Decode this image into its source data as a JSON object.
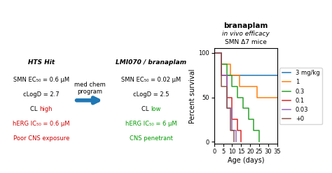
{
  "chart_data": {
    "type": "step",
    "title": "branaplam",
    "subtitle": [
      "in vivo efficacy",
      "SMN Δ7 mice"
    ],
    "x_label": "Age (days)",
    "y_label": "Percent survival",
    "series": [
      {
        "name": "3 mg/kg",
        "x": [
          0,
          4,
          4,
          35
        ],
        "values": [
          100,
          100,
          75,
          75
        ]
      },
      {
        "name": "1",
        "x": [
          0,
          4,
          4,
          9,
          9,
          14,
          14,
          24,
          24,
          35
        ],
        "values": [
          100,
          100,
          87.5,
          87.5,
          75,
          75,
          62.5,
          62.5,
          50,
          50
        ]
      },
      {
        "name": "0.3",
        "x": [
          0,
          4,
          4,
          7,
          7,
          10,
          10,
          13,
          13,
          16,
          16,
          19,
          19,
          22,
          22,
          25,
          25
        ],
        "values": [
          100,
          100,
          87.5,
          87.5,
          75,
          75,
          62.5,
          62.5,
          50,
          50,
          37.5,
          37.5,
          25,
          25,
          12.5,
          12.5,
          0
        ]
      },
      {
        "name": "0.1",
        "x": [
          0,
          4,
          4,
          7,
          7,
          10,
          10,
          13,
          13,
          15,
          15
        ],
        "values": [
          100,
          100,
          75,
          75,
          50,
          50,
          25,
          25,
          12.5,
          12.5,
          0
        ]
      },
      {
        "name": "0.03",
        "x": [
          0,
          4,
          4,
          7,
          7,
          10,
          10,
          12,
          12
        ],
        "values": [
          100,
          100,
          75,
          75,
          37.5,
          37.5,
          12.5,
          12.5,
          0
        ]
      },
      {
        "name": "+0",
        "x": [
          0,
          4,
          4,
          7,
          7,
          9,
          9,
          11,
          11
        ],
        "values": [
          100,
          100,
          62.5,
          62.5,
          37.5,
          37.5,
          12.5,
          12.5,
          0
        ]
      }
    ],
    "xlim": [
      0,
      35
    ],
    "ylim": [
      -2,
      105
    ],
    "xticks": [
      0,
      5,
      10,
      15,
      20,
      25,
      30,
      35
    ],
    "yticks": [
      0,
      50,
      100
    ],
    "legend": "right",
    "annotations": [
      {
        "kind": "panel",
        "title": "HTS Hit",
        "lines": [
          [
            {
              "text": "SMN EC₅₀ = 0.6 μM"
            }
          ],
          [
            {
              "text": "cLogD = 2.7"
            }
          ],
          [
            {
              "text": "CL "
            },
            {
              "text": "high",
              "color": "#cc0000"
            }
          ],
          [
            {
              "text": "hERG IC₅₀ = 0.6 μM",
              "color": "#cc0000"
            }
          ],
          [
            {
              "text": "Poor CNS exposure",
              "color": "#cc0000"
            }
          ]
        ]
      },
      {
        "kind": "arrow",
        "text": [
          "med chem",
          "program"
        ]
      },
      {
        "kind": "panel",
        "title": "LMI070 / branaplam",
        "lines": [
          [
            {
              "text": "SMN EC₅₀ = 0.02 μM"
            }
          ],
          [
            {
              "text": "cLogD = 2.5"
            }
          ],
          [
            {
              "text": "CL "
            },
            {
              "text": "low",
              "color": "#009900"
            }
          ],
          [
            {
              "text": "hERG IC₅₀ = 6 μM",
              "color": "#009900"
            }
          ],
          [
            {
              "text": "CNS penetrant",
              "color": "#009900"
            }
          ]
        ]
      }
    ]
  }
}
